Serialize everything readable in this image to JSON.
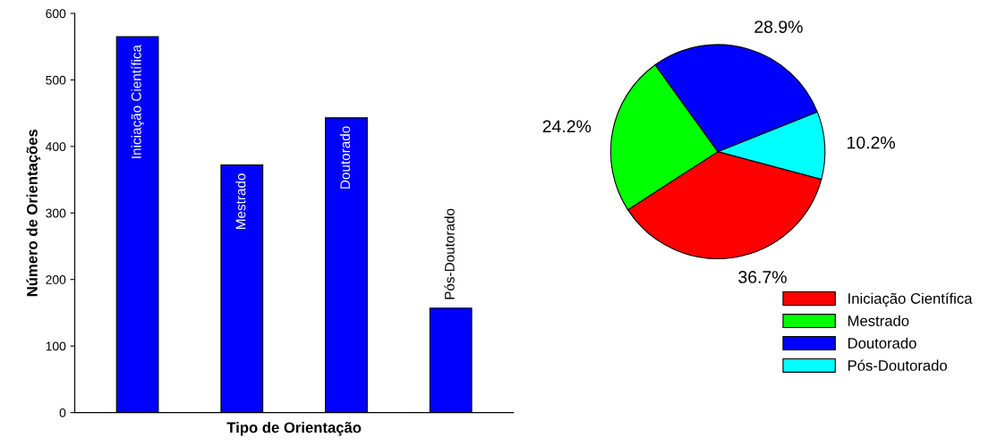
{
  "chart_data": [
    {
      "type": "bar",
      "xlabel": "Tipo de Orientação",
      "ylabel": "Número de Orientações",
      "categories": [
        "Iniciação Científica",
        "Mestrado",
        "Doutorado",
        "Pós-Doutorado"
      ],
      "values": [
        565,
        372,
        443,
        157
      ],
      "color": "#0000ff",
      "ylim": [
        0,
        600
      ],
      "yticks": [
        0,
        100,
        200,
        300,
        400,
        500,
        600
      ],
      "tick_labels": "y",
      "grid": false
    },
    {
      "type": "pie",
      "categories": [
        "Iniciação Científica",
        "Mestrado",
        "Doutorado",
        "Pós-Doutorado"
      ],
      "values": [
        36.7,
        24.2,
        28.9,
        10.2
      ],
      "colors": [
        "#ff0000",
        "#00ff00",
        "#0000ff",
        "#00ffff"
      ],
      "value_labels": [
        "36.7%",
        "24.2%",
        "28.9%",
        "10.2%"
      ],
      "legend": "bottom right"
    }
  ]
}
